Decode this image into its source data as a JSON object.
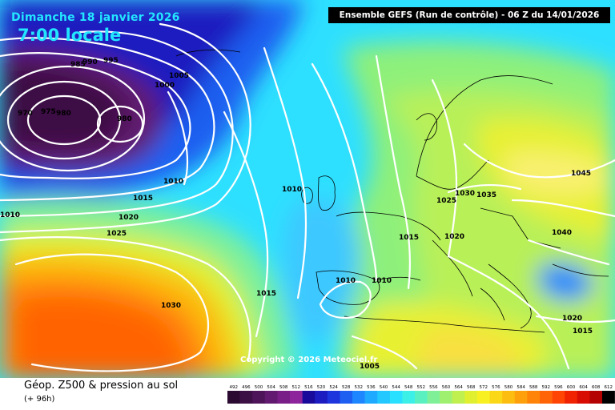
{
  "header": {
    "date": "Dimanche 18 janvier 2026",
    "time": "7:00 locale",
    "model_run": "Ensemble GEFS  (Run de contrôle)  -  06 Z du 14/01/2026"
  },
  "map": {
    "copyright": "Copyright © 2026 Meteociel.fr",
    "isobars": [
      {
        "value": "985",
        "label": "985"
      },
      {
        "value": "990",
        "label": "990"
      },
      {
        "value": "995",
        "label": "995"
      },
      {
        "value": "1000",
        "label": "1000"
      },
      {
        "value": "1005",
        "label": "1005"
      },
      {
        "value": "970",
        "label": "970"
      },
      {
        "value": "975",
        "label": "975"
      },
      {
        "value": "980a",
        "label": "980"
      },
      {
        "value": "980b",
        "label": "980"
      },
      {
        "value": "1010a",
        "label": "1010"
      },
      {
        "value": "1015a",
        "label": "1015"
      },
      {
        "value": "1020a",
        "label": "1020"
      },
      {
        "value": "1025a",
        "label": "1025"
      },
      {
        "value": "1010b",
        "label": "1010"
      },
      {
        "value": "1010c",
        "label": "1010"
      },
      {
        "value": "1030a",
        "label": "1030"
      },
      {
        "value": "1015b",
        "label": "1015"
      },
      {
        "value": "1010d",
        "label": "1010"
      },
      {
        "value": "1010e",
        "label": "1010"
      },
      {
        "value": "1015c",
        "label": "1015"
      },
      {
        "value": "1020b",
        "label": "1020"
      },
      {
        "value": "1025b",
        "label": "1025"
      },
      {
        "value": "1030b",
        "label": "1030"
      },
      {
        "value": "1035",
        "label": "1035"
      },
      {
        "value": "1045",
        "label": "1045"
      },
      {
        "value": "1040",
        "label": "1040"
      },
      {
        "value": "1020c",
        "label": "1020"
      },
      {
        "value": "1015d",
        "label": "1015"
      },
      {
        "value": "1005b",
        "label": "1005"
      }
    ]
  },
  "legend": {
    "title": "Géop. Z500 & pression au sol",
    "subtitle": "(+ 96h)",
    "scale_labels": [
      "492",
      "496",
      "500",
      "504",
      "508",
      "512",
      "516",
      "520",
      "524",
      "528",
      "532",
      "536",
      "540",
      "544",
      "548",
      "552",
      "556",
      "560",
      "564",
      "568",
      "572",
      "576",
      "580",
      "584",
      "588",
      "592",
      "596",
      "600",
      "604",
      "608",
      "612"
    ],
    "scale_colors": [
      "#2a0a30",
      "#3c0f45",
      "#4e145a",
      "#621a70",
      "#781e86",
      "#8e249c",
      "#1a0a9c",
      "#1c1cc0",
      "#1e34dc",
      "#1e5ef0",
      "#1e86ff",
      "#1eaaff",
      "#22c8ff",
      "#2ae0ff",
      "#3cf0e8",
      "#5af0c0",
      "#80f098",
      "#a0f070",
      "#c0f050",
      "#e0f030",
      "#f8f020",
      "#fad818",
      "#fcbc10",
      "#fea00c",
      "#ff8408",
      "#ff6406",
      "#ff4404",
      "#f02202",
      "#d80c02",
      "#b40202",
      "#000000"
    ]
  }
}
